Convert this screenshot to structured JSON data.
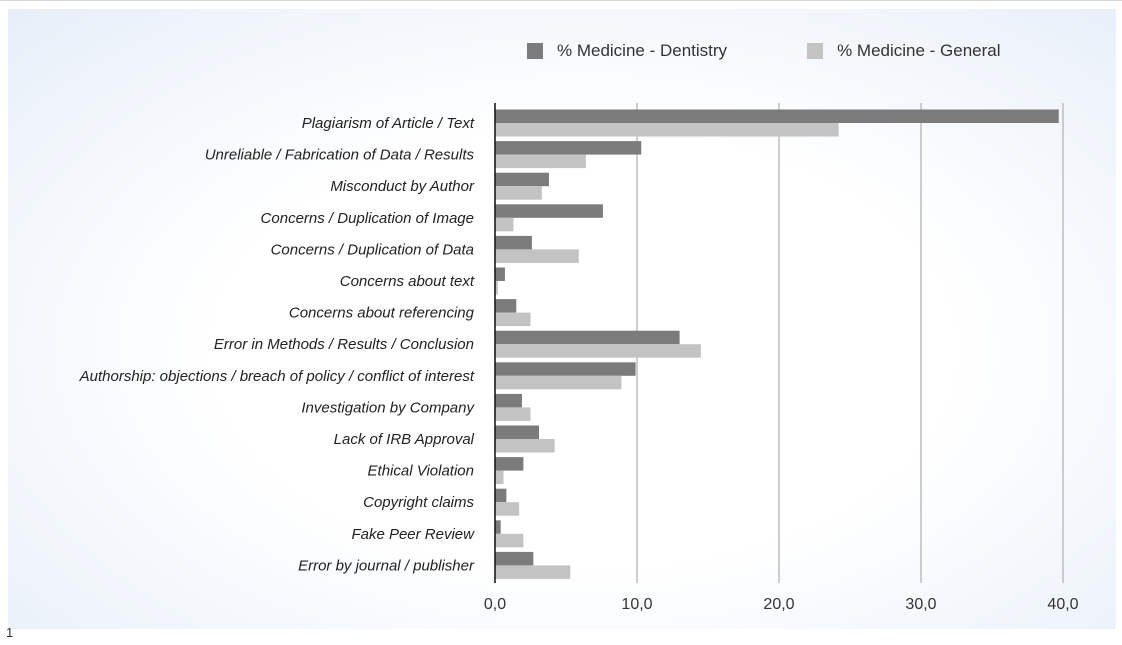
{
  "page_number": "1",
  "chart_data": {
    "type": "bar",
    "orientation": "horizontal",
    "categories": [
      "Plagiarism of Article / Text",
      "Unreliable / Fabrication of Data / Results",
      "Misconduct by Author",
      "Concerns / Duplication of Image",
      "Concerns / Duplication of Data",
      "Concerns about text",
      "Concerns about referencing",
      "Error in Methods / Results / Conclusion",
      "Authorship: objections / breach of policy / conflict of interest",
      "Investigation by Company",
      "Lack of IRB Approval",
      "Ethical Violation",
      "Copyright claims",
      "Fake Peer Review",
      "Error by journal / publisher"
    ],
    "series": [
      {
        "name": "% Medicine - Dentistry",
        "color": "#7b7b7b",
        "values": [
          39.7,
          10.3,
          3.8,
          7.6,
          2.6,
          0.7,
          1.5,
          13.0,
          9.9,
          1.9,
          3.1,
          2.0,
          0.8,
          0.4,
          2.7
        ]
      },
      {
        "name": "% Medicine - General",
        "color": "#c3c3c3",
        "values": [
          24.2,
          6.4,
          3.3,
          1.3,
          5.9,
          0.2,
          2.5,
          14.5,
          8.9,
          2.5,
          4.2,
          0.6,
          1.7,
          2.0,
          5.3
        ]
      }
    ],
    "xlim": [
      0,
      40
    ],
    "xticks": [
      "0,0",
      "10,0",
      "20,0",
      "30,0",
      "40,0"
    ],
    "grid": "vertical",
    "legend": "top"
  }
}
